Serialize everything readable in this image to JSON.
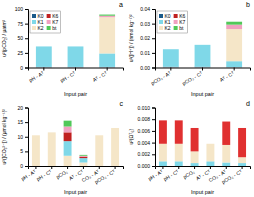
{
  "chart_data": [
    {
      "type": "bar",
      "stacked": true,
      "title": "a",
      "ylabel": "u²(pCO₂) / μatm²",
      "xlabel": "Input pair",
      "categories": [
        "pH - Aᵀ",
        "pH - Cᵀ",
        "Aᵀ - Cᵀ"
      ],
      "series": [
        {
          "name": "K0",
          "color": "#1a5a8a",
          "values": [
            1.0,
            1.0,
            1.0
          ]
        },
        {
          "name": "K1",
          "color": "#7fd8e8",
          "values": [
            35.0,
            35.0,
            23.0
          ]
        },
        {
          "name": "K2",
          "color": "#f5e6c8",
          "values": [
            0.0,
            0.0,
            62.0
          ]
        },
        {
          "name": "K6",
          "color": "#c02020",
          "values": [
            0.0,
            0.0,
            0.0
          ]
        },
        {
          "name": "K7",
          "color": "#f0a0c0",
          "values": [
            0.0,
            0.0,
            2.5
          ]
        },
        {
          "name": "bt",
          "color": "#50c858",
          "values": [
            0.0,
            0.0,
            2.0
          ]
        }
      ],
      "ylim": [
        0,
        100
      ],
      "yticks": [
        0,
        25,
        50,
        75,
        100
      ],
      "grid": false,
      "legend": "upper left"
    },
    {
      "type": "bar",
      "stacked": true,
      "title": "b",
      "ylabel": "u²([H⁺]) / (nmol kg⁻¹)²",
      "xlabel": "Input pair",
      "categories": [
        "pCO₂ - Aᵀ",
        "pCO₂ - Cᵀ",
        "Aᵀ - Cᵀ"
      ],
      "series": [
        {
          "name": "K0",
          "color": "#1a5a8a",
          "values": [
            0.0005,
            0.0005,
            0.0003
          ]
        },
        {
          "name": "K1",
          "color": "#7fd8e8",
          "values": [
            0.012,
            0.015,
            0.004
          ]
        },
        {
          "name": "K2",
          "color": "#f5e6c8",
          "values": [
            0.0,
            0.0,
            0.022
          ]
        },
        {
          "name": "K6",
          "color": "#c02020",
          "values": [
            0.0,
            0.0,
            0.0
          ]
        },
        {
          "name": "K7",
          "color": "#f0a0c0",
          "values": [
            0.0,
            0.0,
            0.003
          ]
        },
        {
          "name": "bt",
          "color": "#50c858",
          "values": [
            0.0,
            0.0,
            0.002
          ]
        }
      ],
      "ylim": [
        0,
        0.04
      ],
      "yticks": [
        {
          "value": 0,
          "label": "0.00"
        },
        {
          "value": 0.01,
          "label": "0.01"
        },
        {
          "value": 0.02,
          "label": "0.02"
        },
        {
          "value": 0.03,
          "label": "0.03"
        },
        {
          "value": 0.04,
          "label": "0.04"
        }
      ],
      "grid": false,
      "legend": "upper left"
    },
    {
      "type": "bar",
      "stacked": true,
      "title": "c",
      "ylabel": "u²([CO₃²⁻]) / (μmol kg⁻¹)²",
      "xlabel": "Input pair",
      "categories": [
        "pH - Aᵀ",
        "pH - Cᵀ",
        "pCO₂",
        "Aᵀ - Cᵀ",
        "CO₃ - Aᵀ",
        "pCO₂ - Cᵀ"
      ],
      "series": [
        {
          "color": "#f5e6c8",
          "values": [
            10.5,
            11.5,
            3.5,
            1.2,
            10.5,
            13.0
          ]
        },
        {
          "color": "#7fd8e8",
          "values": [
            0.0,
            0.0,
            5.0,
            1.5,
            0.0,
            0.0
          ]
        },
        {
          "color": "#c02020",
          "values": [
            0.0,
            0.0,
            3.0,
            0.5,
            0.0,
            0.0
          ]
        },
        {
          "color": "#f0a0c0",
          "values": [
            0.0,
            0.0,
            2.0,
            0.3,
            0.0,
            0.0
          ]
        },
        {
          "color": "#50c858",
          "values": [
            0.0,
            0.0,
            2.0,
            0.3,
            0.0,
            0.0
          ]
        }
      ],
      "ylim": [
        0,
        20
      ],
      "yticks": [
        0,
        5,
        10,
        15,
        20
      ],
      "grid": false,
      "legend": false
    },
    {
      "type": "bar",
      "stacked": true,
      "title": "d",
      "ylabel": "u²(Ωᵀ₆)",
      "xlabel": "Input pair",
      "categories": [
        "pH - Aᵀ",
        "pH - Cᵀ",
        "pCO₂",
        "Aᵀ - Cᵀ",
        "CO₃ - Aᵀ",
        "pCO₂ - Cᵀ"
      ],
      "series": [
        {
          "color": "#7fd8e8",
          "values": [
            0.0008,
            0.0008,
            0.0005,
            0.0008,
            0.0006,
            0.0005
          ]
        },
        {
          "color": "#f5e6c8",
          "values": [
            0.003,
            0.003,
            0.002,
            0.003,
            0.003,
            0.001
          ]
        },
        {
          "color": "#e03030",
          "values": [
            0.004,
            0.004,
            0.004,
            0.0,
            0.004,
            0.005
          ]
        }
      ],
      "ylim": [
        0,
        0.01
      ],
      "yticks": [
        {
          "value": 0,
          "label": "0.000"
        },
        {
          "value": 0.002,
          "label": "0.002"
        },
        {
          "value": 0.004,
          "label": "0.004"
        },
        {
          "value": 0.006,
          "label": "0.006"
        },
        {
          "value": 0.008,
          "label": "0.008"
        },
        {
          "value": 0.01,
          "label": "0.010"
        }
      ],
      "grid": false,
      "legend": false
    }
  ]
}
